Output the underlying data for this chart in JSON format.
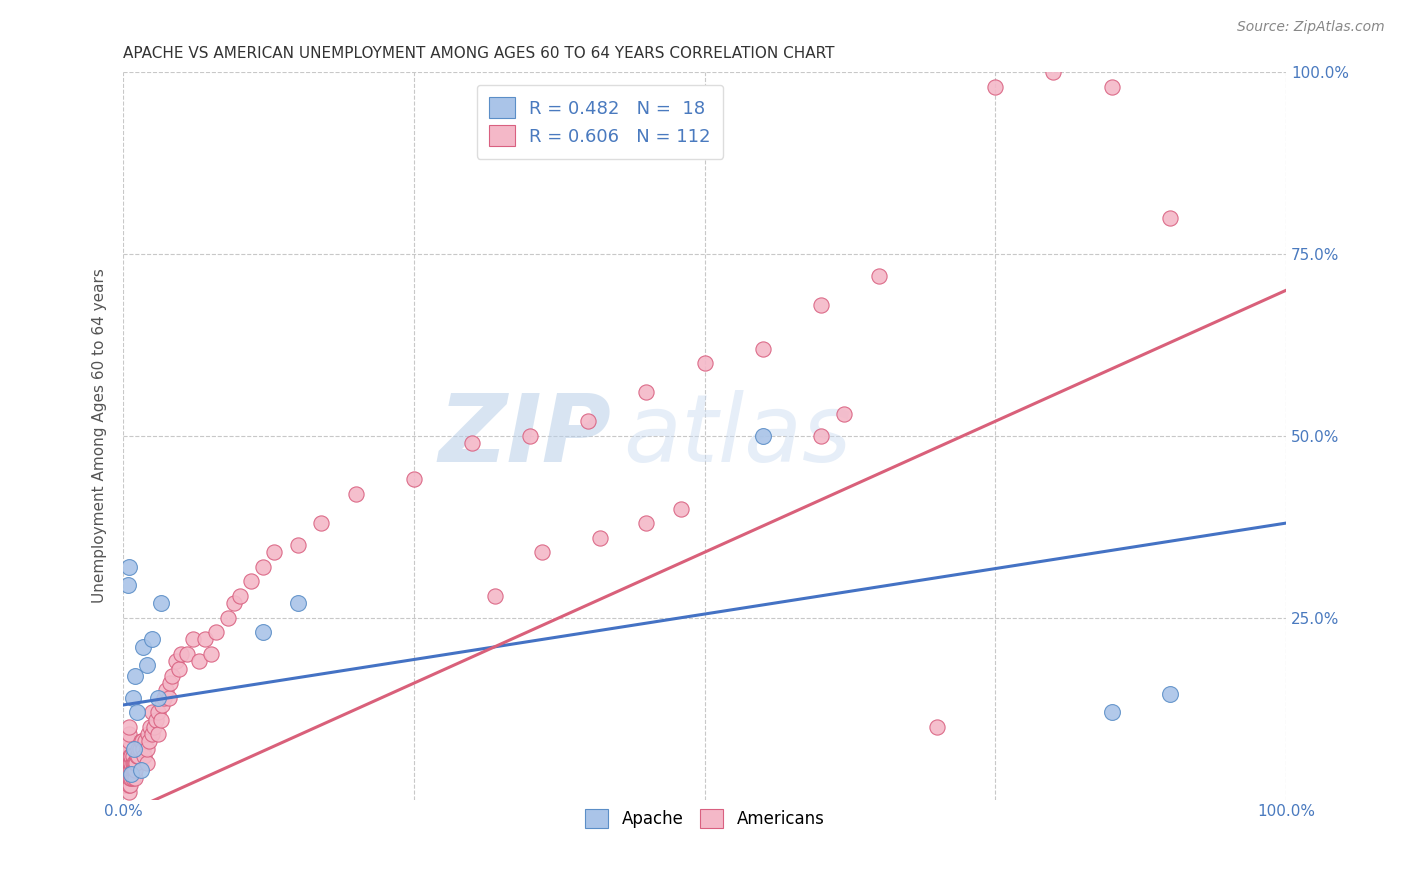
{
  "title": "APACHE VS AMERICAN UNEMPLOYMENT AMONG AGES 60 TO 64 YEARS CORRELATION CHART",
  "source": "Source: ZipAtlas.com",
  "ylabel": "Unemployment Among Ages 60 to 64 years",
  "xlim": [
    0,
    1.0
  ],
  "ylim": [
    0,
    1.0
  ],
  "x_tick_labels": [
    "0.0%",
    "100.0%"
  ],
  "y_tick_labels": [
    "25.0%",
    "50.0%",
    "75.0%",
    "100.0%"
  ],
  "y_tick_positions": [
    0.25,
    0.5,
    0.75,
    1.0
  ],
  "watermark_zip": "ZIP",
  "watermark_atlas": "atlas",
  "legend_R_apache": "R = 0.482",
  "legend_N_apache": "N =  18",
  "legend_R_american": "R = 0.606",
  "legend_N_american": "N = 112",
  "apache_fill": "#aac4e8",
  "apache_edge": "#5b8ec7",
  "american_fill": "#f4b8c8",
  "american_edge": "#d96080",
  "apache_line_color": "#4472c4",
  "american_line_color": "#d9607a",
  "background_color": "#ffffff",
  "grid_color": "#c8c8c8",
  "apache_line_y0": 0.13,
  "apache_line_y1": 0.38,
  "american_line_y0": -0.02,
  "american_line_y1": 0.7,
  "apache_x": [
    0.004,
    0.005,
    0.007,
    0.008,
    0.009,
    0.01,
    0.012,
    0.015,
    0.017,
    0.02,
    0.025,
    0.03,
    0.032,
    0.12,
    0.15,
    0.55,
    0.85,
    0.9
  ],
  "apache_y": [
    0.295,
    0.32,
    0.035,
    0.14,
    0.07,
    0.17,
    0.12,
    0.04,
    0.21,
    0.185,
    0.22,
    0.14,
    0.27,
    0.23,
    0.27,
    0.5,
    0.12,
    0.145
  ],
  "american_x": [
    0.001,
    0.001,
    0.001,
    0.002,
    0.002,
    0.002,
    0.002,
    0.003,
    0.003,
    0.003,
    0.003,
    0.004,
    0.004,
    0.004,
    0.004,
    0.004,
    0.004,
    0.005,
    0.005,
    0.005,
    0.005,
    0.005,
    0.005,
    0.005,
    0.005,
    0.005,
    0.005,
    0.006,
    0.006,
    0.006,
    0.006,
    0.006,
    0.007,
    0.007,
    0.007,
    0.007,
    0.008,
    0.008,
    0.008,
    0.008,
    0.009,
    0.009,
    0.01,
    0.01,
    0.01,
    0.011,
    0.012,
    0.013,
    0.013,
    0.014,
    0.015,
    0.016,
    0.017,
    0.018,
    0.019,
    0.02,
    0.02,
    0.021,
    0.022,
    0.023,
    0.025,
    0.025,
    0.026,
    0.028,
    0.03,
    0.03,
    0.032,
    0.033,
    0.035,
    0.037,
    0.039,
    0.04,
    0.042,
    0.045,
    0.048,
    0.05,
    0.055,
    0.06,
    0.065,
    0.07,
    0.075,
    0.08,
    0.09,
    0.095,
    0.1,
    0.11,
    0.12,
    0.13,
    0.15,
    0.17,
    0.2,
    0.25,
    0.3,
    0.35,
    0.4,
    0.45,
    0.5,
    0.55,
    0.6,
    0.65,
    0.7,
    0.75,
    0.8,
    0.85,
    0.9,
    0.6,
    0.62,
    0.45,
    0.48,
    0.36,
    0.41,
    0.32
  ],
  "american_y": [
    0.02,
    0.03,
    0.04,
    0.02,
    0.03,
    0.04,
    0.05,
    0.02,
    0.03,
    0.04,
    0.05,
    0.02,
    0.03,
    0.04,
    0.05,
    0.06,
    0.07,
    0.01,
    0.02,
    0.03,
    0.04,
    0.05,
    0.06,
    0.07,
    0.08,
    0.09,
    0.1,
    0.02,
    0.03,
    0.04,
    0.05,
    0.06,
    0.03,
    0.04,
    0.05,
    0.06,
    0.03,
    0.04,
    0.05,
    0.06,
    0.04,
    0.05,
    0.03,
    0.04,
    0.05,
    0.05,
    0.06,
    0.06,
    0.07,
    0.07,
    0.08,
    0.08,
    0.07,
    0.06,
    0.08,
    0.05,
    0.07,
    0.09,
    0.08,
    0.1,
    0.09,
    0.12,
    0.1,
    0.11,
    0.09,
    0.12,
    0.11,
    0.13,
    0.14,
    0.15,
    0.14,
    0.16,
    0.17,
    0.19,
    0.18,
    0.2,
    0.2,
    0.22,
    0.19,
    0.22,
    0.2,
    0.23,
    0.25,
    0.27,
    0.28,
    0.3,
    0.32,
    0.34,
    0.35,
    0.38,
    0.42,
    0.44,
    0.49,
    0.5,
    0.52,
    0.56,
    0.6,
    0.62,
    0.68,
    0.72,
    0.1,
    0.98,
    1.0,
    0.98,
    0.8,
    0.5,
    0.53,
    0.38,
    0.4,
    0.34,
    0.36,
    0.28
  ]
}
